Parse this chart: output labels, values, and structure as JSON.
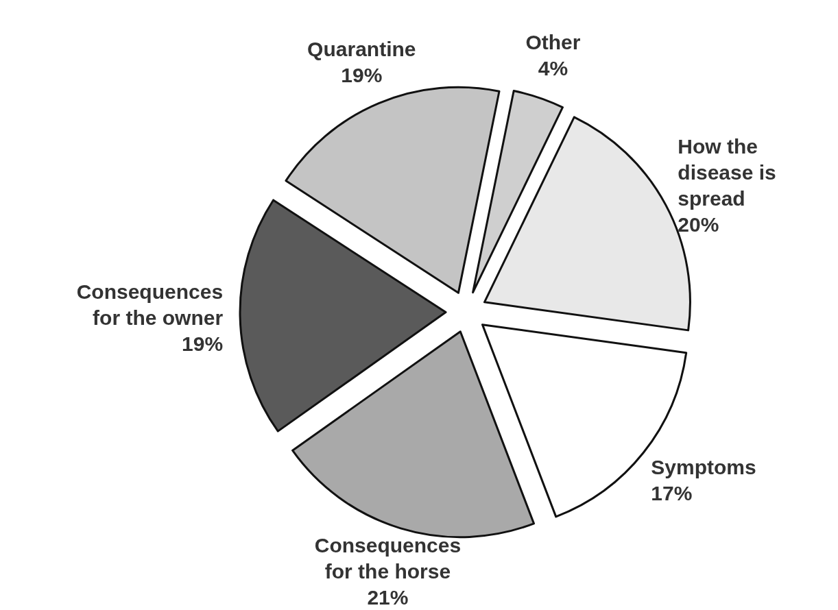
{
  "chart_data": {
    "type": "pie",
    "categories": [
      "Other",
      "How the disease is spread",
      "Symptoms",
      "Consequences for the horse",
      "Consequences for the owner",
      "Quarantine"
    ],
    "values": [
      4,
      20,
      17,
      21,
      19,
      19
    ],
    "value_labels": [
      "4%",
      "20%",
      "17%",
      "21%",
      "19%",
      "19%"
    ],
    "colors": [
      "#cfcfcf",
      "#e8e8e8",
      "#ffffff",
      "#a9a9a9",
      "#5a5a5a",
      "#c4c4c4"
    ]
  }
}
